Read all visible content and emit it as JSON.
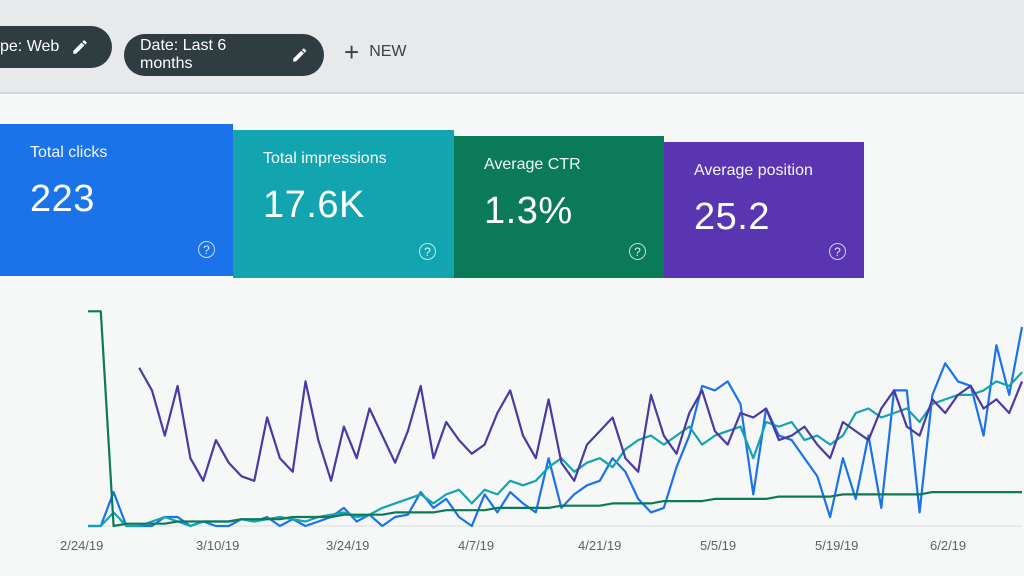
{
  "filters": {
    "type_chip": "ype: Web",
    "date_chip": "Date: Last 6 months",
    "new_label": "NEW"
  },
  "metrics": [
    {
      "label": "Total clicks",
      "value": "223",
      "color": "#1a73e8"
    },
    {
      "label": "Total impressions",
      "value": "17.6K",
      "color": "#12a4af"
    },
    {
      "label": "Average CTR",
      "value": "1.3%",
      "color": "#0b7a59"
    },
    {
      "label": "Average position",
      "value": "25.2",
      "color": "#5a35b1"
    }
  ],
  "help_glyph": "?",
  "chart_data": {
    "type": "line",
    "title": "",
    "xlabel": "",
    "ylabel": "",
    "x_ticks": [
      "2/24/19",
      "3/10/19",
      "3/24/19",
      "4/7/19",
      "4/21/19",
      "5/5/19",
      "5/19/19",
      "6/2/19"
    ],
    "ylim": [
      0,
      100
    ],
    "series": [
      {
        "color": "#1a73e8",
        "values": [
          0,
          0,
          15,
          0,
          0,
          0,
          4,
          4,
          0,
          2,
          0,
          0,
          3,
          2,
          4,
          0,
          3,
          0,
          2,
          4,
          8,
          2,
          5,
          0,
          4,
          5,
          15,
          8,
          12,
          4,
          0,
          14,
          6,
          15,
          10,
          6,
          30,
          8,
          14,
          18,
          20,
          30,
          24,
          12,
          6,
          8,
          26,
          40,
          62,
          60,
          64,
          54,
          14,
          52,
          40,
          38,
          30,
          22,
          4,
          30,
          12,
          40,
          8,
          60,
          60,
          6,
          58,
          72,
          64,
          62,
          40,
          80,
          58,
          88
        ]
      },
      {
        "color": "#12a4af",
        "values": [
          0,
          0,
          6,
          0,
          0,
          2,
          4,
          2,
          0,
          2,
          2,
          2,
          3,
          2,
          3,
          4,
          3,
          2,
          4,
          5,
          6,
          4,
          5,
          8,
          10,
          12,
          14,
          10,
          14,
          16,
          10,
          16,
          14,
          20,
          18,
          20,
          26,
          30,
          24,
          28,
          30,
          26,
          34,
          38,
          40,
          36,
          40,
          44,
          36,
          40,
          42,
          44,
          30,
          46,
          44,
          46,
          38,
          40,
          36,
          40,
          50,
          52,
          48,
          50,
          52,
          46,
          54,
          56,
          58,
          58,
          60,
          64,
          62,
          68
        ]
      },
      {
        "color": "#0b7a59",
        "values": [
          95,
          95,
          0,
          1,
          1,
          1,
          1,
          2,
          2,
          2,
          2,
          2,
          3,
          3,
          3,
          3,
          4,
          4,
          4,
          4,
          5,
          5,
          5,
          5,
          6,
          6,
          6,
          6,
          7,
          7,
          7,
          7,
          8,
          8,
          8,
          8,
          8,
          9,
          9,
          9,
          9,
          10,
          10,
          10,
          10,
          11,
          11,
          11,
          11,
          12,
          12,
          12,
          12,
          12,
          13,
          13,
          13,
          13,
          13,
          14,
          14,
          14,
          14,
          14,
          14,
          14,
          15,
          15,
          15,
          15,
          15,
          15,
          15,
          15
        ]
      },
      {
        "color": "#4b3aa3",
        "values": [
          null,
          null,
          null,
          null,
          70,
          60,
          40,
          62,
          30,
          20,
          38,
          28,
          22,
          20,
          48,
          30,
          24,
          64,
          38,
          20,
          44,
          30,
          52,
          40,
          28,
          42,
          62,
          30,
          46,
          38,
          32,
          36,
          50,
          60,
          40,
          30,
          56,
          28,
          20,
          36,
          42,
          48,
          30,
          24,
          58,
          40,
          32,
          50,
          60,
          42,
          36,
          50,
          48,
          52,
          38,
          40,
          44,
          36,
          30,
          46,
          42,
          38,
          52,
          60,
          44,
          40,
          56,
          50,
          58,
          62,
          52,
          56,
          50,
          64
        ]
      }
    ]
  }
}
